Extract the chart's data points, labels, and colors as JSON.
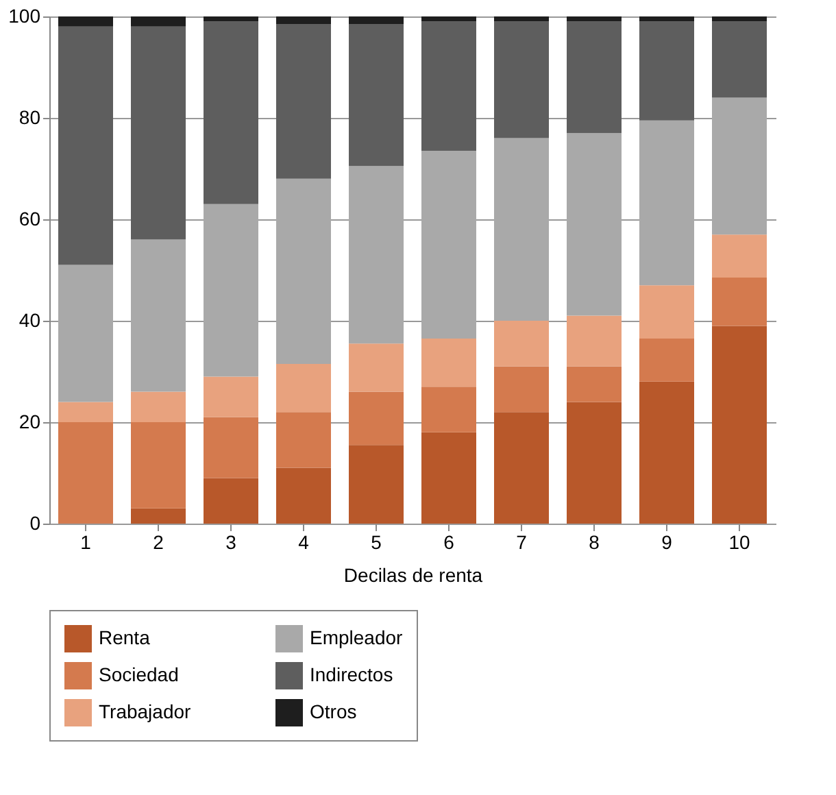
{
  "chart_data": {
    "type": "bar",
    "stacked": true,
    "xlabel": "Decilas de renta",
    "categories": [
      "1",
      "2",
      "3",
      "4",
      "5",
      "6",
      "7",
      "8",
      "9",
      "10"
    ],
    "series": [
      {
        "name": "Renta",
        "color": "#b8582a",
        "values": [
          0,
          3,
          9,
          11,
          15.5,
          18,
          22,
          24,
          28,
          39
        ]
      },
      {
        "name": "Sociedad",
        "color": "#d47a4e",
        "values": [
          20,
          17,
          12,
          11,
          10.5,
          9,
          9,
          7,
          8.5,
          9.5
        ]
      },
      {
        "name": "Trabajador",
        "color": "#e8a27e",
        "values": [
          4,
          6,
          8,
          9.5,
          9.5,
          9.5,
          9,
          10,
          10.5,
          8.5
        ]
      },
      {
        "name": "Empleador",
        "color": "#a9a9a9",
        "values": [
          27,
          30,
          34,
          36.5,
          35,
          37,
          36,
          36,
          32.5,
          27
        ]
      },
      {
        "name": "Indirectos",
        "color": "#5e5e5e",
        "values": [
          47,
          42,
          36,
          30.5,
          28,
          25.5,
          23,
          22,
          19.5,
          15
        ]
      },
      {
        "name": "Otros",
        "color": "#1e1e1e",
        "values": [
          2,
          2,
          1,
          1.5,
          1.5,
          1,
          1,
          1,
          1,
          1
        ]
      }
    ],
    "ylim": [
      0,
      100
    ],
    "yticks": [
      0,
      20,
      40,
      60,
      80,
      100
    ],
    "grid": "y",
    "legend": "bottom"
  }
}
